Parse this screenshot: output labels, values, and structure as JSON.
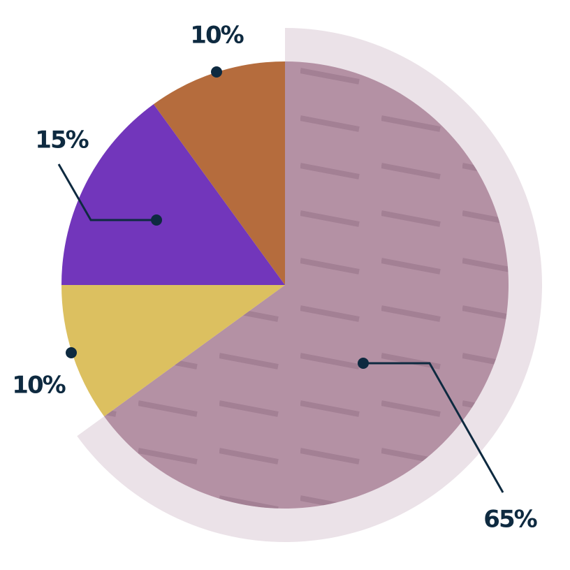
{
  "chart_data": {
    "type": "pie",
    "values": [
      65,
      10,
      15,
      10
    ],
    "value_labels": [
      "65%",
      "10%",
      "15%",
      "10%"
    ],
    "colors": [
      "#b491a4",
      "#dcc060",
      "#7236bb",
      "#b56c3d"
    ]
  }
}
